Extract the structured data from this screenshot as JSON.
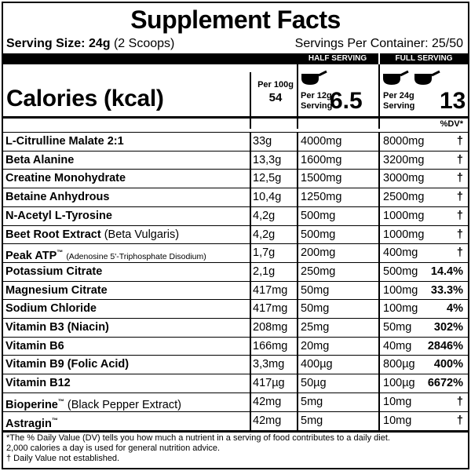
{
  "title": "Supplement Facts",
  "serving_size_label": "Serving Size:",
  "serving_size_value": "24g",
  "serving_size_note": "(2 Scoops)",
  "servings_per_container": "Servings Per Container: 25/50",
  "header_half": "HALF SERVING",
  "header_full": "FULL SERVING",
  "calories_label": "Calories (kcal)",
  "per100_label": "Per 100g",
  "per100_value": "54",
  "half_label_line1": "Per 12g",
  "half_label_line2": "Serving",
  "half_value": "6.5",
  "full_label_line1": "Per 24g",
  "full_label_line2": "Serving",
  "full_value": "13",
  "dv_header": "%DV*",
  "rows": [
    {
      "name": "L-Citrulline Malate 2:1",
      "extra": "",
      "per100": "33g",
      "half": "4000mg",
      "full": "8000mg",
      "dv": "†"
    },
    {
      "name": "Beta Alanine",
      "extra": "",
      "per100": "13,3g",
      "half": "1600mg",
      "full": "3200mg",
      "dv": "†"
    },
    {
      "name": "Creatine Monohydrate",
      "extra": "",
      "per100": "12,5g",
      "half": "1500mg",
      "full": "3000mg",
      "dv": "†"
    },
    {
      "name": "Betaine Anhydrous",
      "extra": "",
      "per100": "10,4g",
      "half": "1250mg",
      "full": "2500mg",
      "dv": "†"
    },
    {
      "name": "N-Acetyl L-Tyrosine",
      "extra": "",
      "per100": "4,2g",
      "half": "500mg",
      "full": "1000mg",
      "dv": "†"
    },
    {
      "name": "Beet Root Extract",
      "extra": "(Beta Vulgaris)",
      "per100": "4,2g",
      "half": "500mg",
      "full": "1000mg",
      "dv": "†"
    },
    {
      "name": "Peak ATP",
      "tm": "™",
      "extra": "(Adenosine 5'-Triphosphate Disodium)",
      "per100": "1,7g",
      "half": "200mg",
      "full": "400mg",
      "dv": "†"
    },
    {
      "name": "Potassium Citrate",
      "extra": "",
      "per100": "2,1g",
      "half": "250mg",
      "full": "500mg",
      "dv": "14.4%"
    },
    {
      "name": "Magnesium Citrate",
      "extra": "",
      "per100": "417mg",
      "half": "50mg",
      "full": "100mg",
      "dv": "33.3%"
    },
    {
      "name": "Sodium Chloride",
      "extra": "",
      "per100": "417mg",
      "half": "50mg",
      "full": "100mg",
      "dv": "4%"
    },
    {
      "name": "Vitamin B3 (Niacin)",
      "extra": "",
      "per100": "208mg",
      "half": "25mg",
      "full": "50mg",
      "dv": "302%"
    },
    {
      "name": "Vitamin B6",
      "extra": "",
      "per100": "166mg",
      "half": "20mg",
      "full": "40mg",
      "dv": "2846%"
    },
    {
      "name": "Vitamin B9 (Folic Acid)",
      "extra": "",
      "per100": "3,3mg",
      "half": "400µg",
      "full": "800µg",
      "dv": "400%"
    },
    {
      "name": "Vitamin B12",
      "extra": "",
      "per100": "417µg",
      "half": "50µg",
      "full": "100µg",
      "dv": "6672%"
    },
    {
      "name": "Bioperine",
      "tm": "™",
      "extra": "(Black Pepper Extract)",
      "per100": "42mg",
      "half": "5mg",
      "full": "10mg",
      "dv": "†"
    },
    {
      "name": "Astragin",
      "tm": "™",
      "extra": "",
      "per100": "42mg",
      "half": "5mg",
      "full": "10mg",
      "dv": "†"
    }
  ],
  "footnote_1": "*The % Daily Value (DV) tells you how much a nutrient in a serving of food contributes to a daily diet.",
  "footnote_2": "2,000 calories a day is used for general nutrition advice.",
  "footnote_3": "† Daily Value not established."
}
